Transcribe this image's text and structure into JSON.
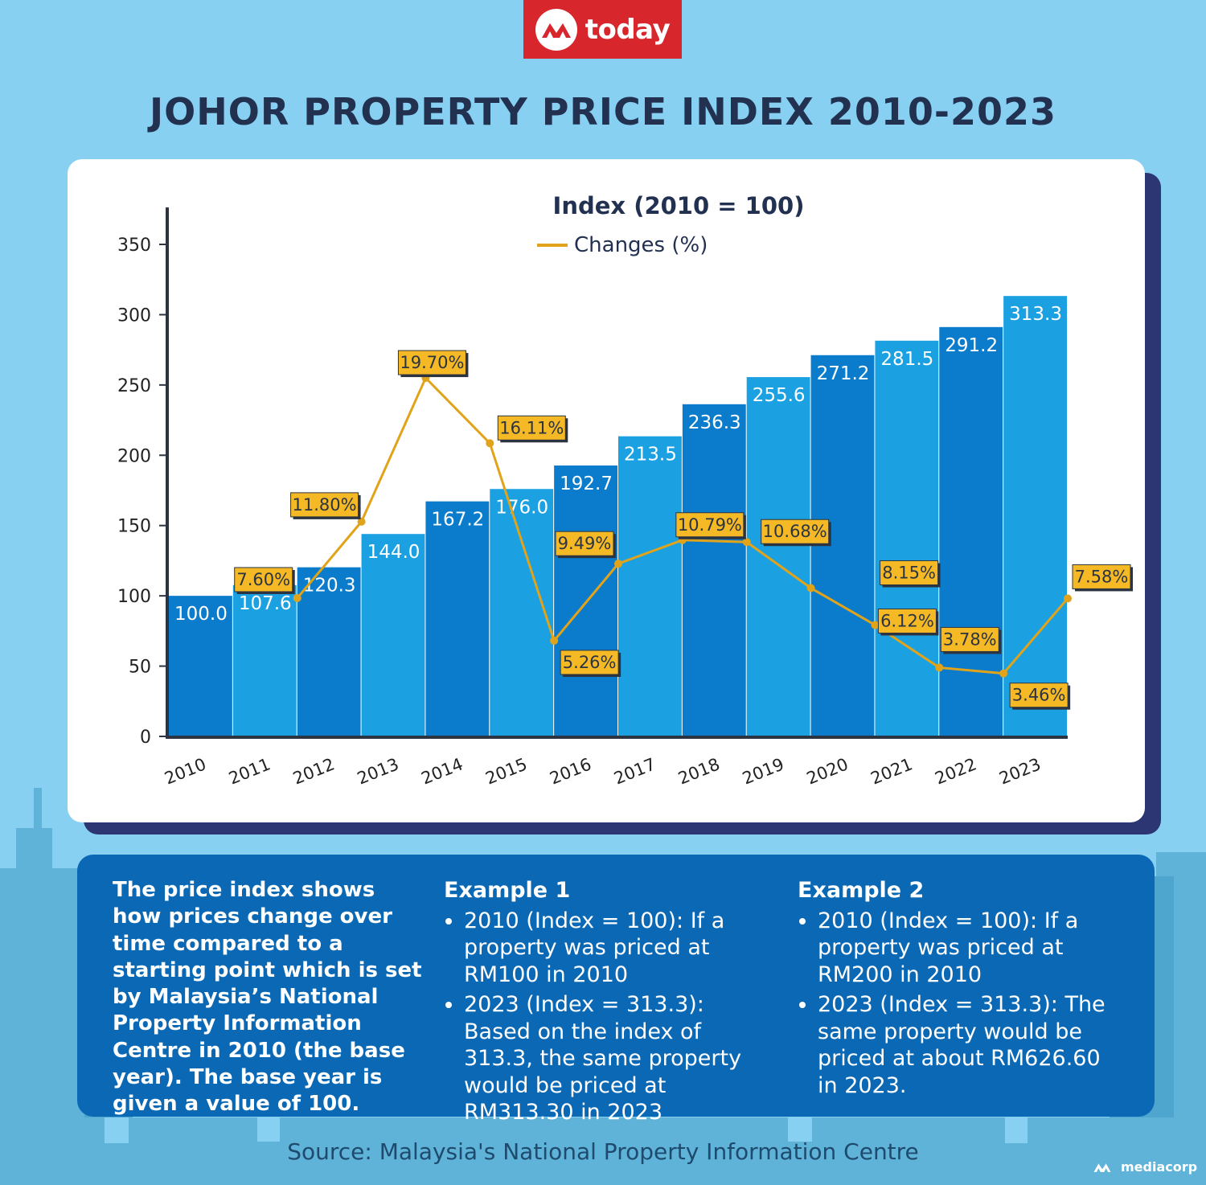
{
  "brand": {
    "logo_text": "today",
    "footer_logo_text": "mediacorp"
  },
  "title": "JOHOR PROPERTY PRICE INDEX 2010-2023",
  "chart_data": {
    "type": "bar",
    "title": "Index (2010 = 100)",
    "categories": [
      "2010",
      "2011",
      "2012",
      "2013",
      "2014",
      "2015",
      "2016",
      "2017",
      "2018",
      "2019",
      "2020",
      "2021",
      "2022",
      "2023"
    ],
    "values": [
      100.0,
      107.6,
      120.3,
      144.0,
      167.2,
      176.0,
      192.7,
      213.5,
      236.3,
      255.6,
      271.2,
      281.5,
      291.2,
      313.3
    ],
    "value_labels": [
      "100.0",
      "107.6",
      "120.3",
      "144.0",
      "167.2",
      "176.0",
      "192.7",
      "213.5",
      "236.3",
      "255.6",
      "271.2",
      "281.5",
      "291.2",
      "313.3"
    ],
    "ylim": [
      0,
      350
    ],
    "yticks": [
      0,
      50,
      100,
      150,
      200,
      250,
      300,
      350
    ],
    "ytick_labels": [
      "0",
      "50",
      "100",
      "150",
      "200",
      "250",
      "300",
      "350"
    ],
    "overlay_line": {
      "name": "Changes (%)",
      "x": [
        "2011",
        "2012",
        "2013",
        "2014",
        "2015",
        "2016",
        "2017",
        "2018",
        "2019",
        "2020",
        "2021",
        "2022",
        "2023"
      ],
      "values": [
        7.6,
        11.8,
        19.7,
        16.11,
        5.26,
        9.49,
        10.79,
        10.68,
        8.15,
        6.12,
        3.78,
        3.46,
        7.58
      ],
      "labels": [
        "7.60%",
        "11.80%",
        "19.70%",
        "16.11%",
        "5.26%",
        "9.49%",
        "10.79%",
        "10.68%",
        "8.15%",
        "6.12%",
        "3.78%",
        "3.46%",
        "7.58%"
      ]
    },
    "legend_position": "top-center",
    "colors": {
      "bar_dark": "#0b7ccc",
      "bar_light": "#1ba1e2",
      "line": "#e1a31a",
      "label_bg": "#f6b926",
      "axis": "#2b3440"
    }
  },
  "info": {
    "intro": "The price index shows how prices change over time compared to a starting point which is set by Malaysia’s National Property Information Centre in 2010 (the base year). The base year is given a value of 100.",
    "example1": {
      "heading": "Example 1",
      "bullets": [
        "2010 (Index = 100): If a property was priced at RM100 in 2010",
        "2023 (Index = 313.3): Based on the index of 313.3, the same property would be priced at RM313.30 in 2023"
      ]
    },
    "example2": {
      "heading": "Example 2",
      "bullets": [
        "2010 (Index = 100): If a property was priced at RM200 in 2010",
        "2023 (Index = 313.3): The same property would be priced at about RM626.60 in 2023."
      ]
    }
  },
  "source": "Source: Malaysia's National Property Information Centre"
}
